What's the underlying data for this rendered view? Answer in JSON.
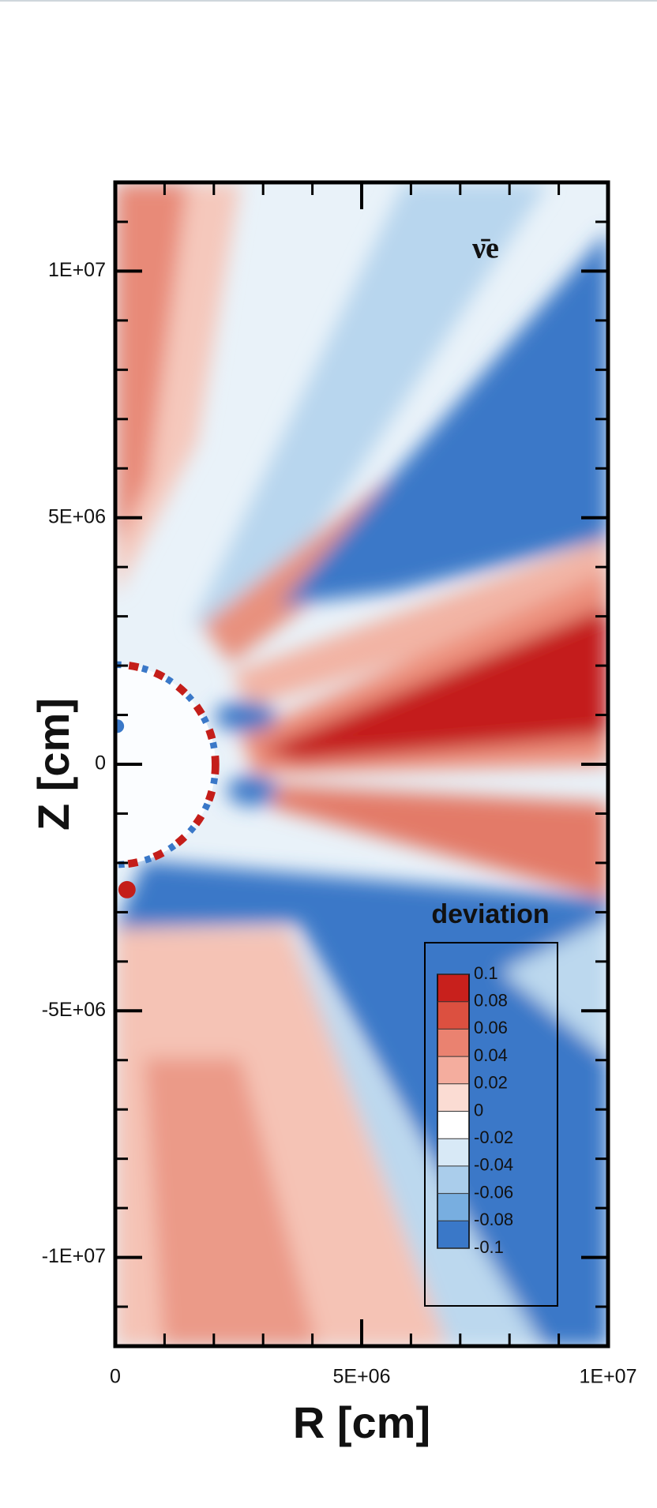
{
  "chart_data": {
    "type": "heatmap",
    "xlabel": "R [cm]",
    "ylabel": "Z [cm]",
    "annotation": "ν̄e",
    "xlim": [
      0,
      10000000
    ],
    "ylim": [
      -11800000,
      11800000
    ],
    "xticks": [
      0,
      {
        "value": 5000000,
        "label": "5E+06"
      },
      {
        "value": 10000000,
        "label": "1E+07"
      }
    ],
    "yticks": [
      {
        "value": -10000000,
        "label": "-1E+07"
      },
      {
        "value": -5000000,
        "label": "-5E+06"
      },
      0,
      {
        "value": 5000000,
        "label": "5E+06"
      },
      {
        "value": 10000000,
        "label": "1E+07"
      }
    ],
    "xminorticks": [
      1000000,
      2000000,
      3000000,
      4000000,
      6000000,
      7000000,
      8000000,
      9000000
    ],
    "yminorticks": [
      -11000000,
      -9000000,
      -8000000,
      -7000000,
      -6000000,
      -4000000,
      -3000000,
      -2000000,
      -1000000,
      1000000,
      2000000,
      3000000,
      4000000,
      6000000,
      7000000,
      8000000,
      9000000,
      11000000
    ],
    "colorbar": {
      "title": "deviation",
      "clim": [
        -0.1,
        0.1
      ],
      "ticks": [
        0.1,
        0.08,
        0.06,
        0.04,
        0.02,
        0,
        -0.02,
        -0.04,
        -0.06,
        -0.08,
        -0.1
      ],
      "colors": [
        "#c8201c",
        "#dc5040",
        "#ea8270",
        "#f4ad9e",
        "#fbdcd3",
        "#ffffff",
        "#d8e9f6",
        "#aacdeb",
        "#78aee0",
        "#3a78c8"
      ]
    }
  }
}
